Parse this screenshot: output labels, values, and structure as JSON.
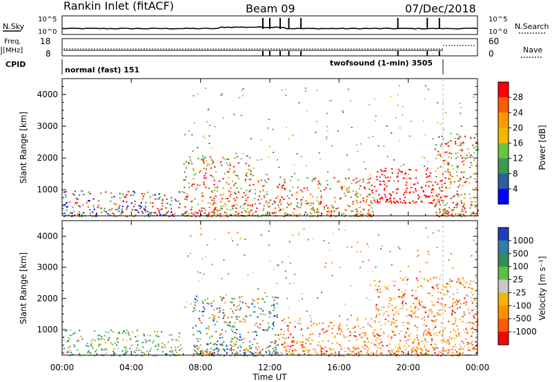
{
  "header": {
    "station": "Rankin Inlet (fitACF)",
    "beam": "Beam 09",
    "date": "07/Dec/2018"
  },
  "status_strip": {
    "nsky_label": "N.Sky",
    "nsky_ticks": [
      "10^5",
      "10^0"
    ],
    "nsearch_label": "N.Search",
    "freq_label_1": "Freq.",
    "freq_label_2": "[MHz]",
    "freq_ticks": [
      "18",
      "8"
    ],
    "nave_ticks": [
      "60",
      "0"
    ],
    "nave_label": "Nave",
    "cpid_label": "CPID",
    "cpid_normal": "normal (fast) 151",
    "cpid_twofsound": "twofsound (1-min) 3505"
  },
  "power_panel": {
    "ylabel": "Slant Range [km]",
    "cbar_label": "Power [dB]",
    "cbar_ticks": [
      "28",
      "24",
      "20",
      "16",
      "12",
      "8",
      "4"
    ],
    "cbar_colors": [
      "#ff0000",
      "#ff5a00",
      "#ff9a00",
      "#f5b800",
      "#6cc43e",
      "#3a9b50",
      "#2a5fa0",
      "#0000ff"
    ]
  },
  "velocity_panel": {
    "ylabel": "Slant Range [km]",
    "cbar_label": "Velocity  [m s⁻¹]",
    "cbar_ticks": [
      "1000",
      "500",
      "100",
      "25",
      "-25",
      "-100",
      "-500",
      "-1000"
    ],
    "cbar_colors": [
      "#1f3fbf",
      "#2f7fa8",
      "#2f8f58",
      "#5fbf3f",
      "#c8c8c8",
      "#f2b600",
      "#ff9100",
      "#ff5a00",
      "#ff0000"
    ]
  },
  "x_axis": {
    "label": "Time UT",
    "ticks": [
      "00:00",
      "04:00",
      "08:00",
      "12:00",
      "16:00",
      "20:00",
      "00:00"
    ]
  },
  "y_axis": {
    "ticks": [
      "1000",
      "2000",
      "3000",
      "4000"
    ]
  },
  "chart_data": [
    {
      "type": "heatmap",
      "title": "Power [dB]",
      "xlabel": "Time UT",
      "ylabel": "Slant Range [km]",
      "xlim": [
        0,
        24
      ],
      "ylim": [
        180,
        4500
      ],
      "colorbar": [
        4,
        8,
        12,
        16,
        20,
        24,
        28
      ],
      "regions": [
        {
          "t0": 0.0,
          "t1": 7.0,
          "r0": 180,
          "r1": 1000,
          "level": "mixed low-high"
        },
        {
          "t0": 7.0,
          "t1": 11.0,
          "r0": 180,
          "r1": 2100,
          "level": "20-28"
        },
        {
          "t0": 11.0,
          "t1": 18.0,
          "r0": 180,
          "r1": 1400,
          "level": "16-28"
        },
        {
          "t0": 18.0,
          "t1": 21.5,
          "r0": 600,
          "r1": 1700,
          "level": "28"
        },
        {
          "t0": 21.5,
          "t1": 24.0,
          "r0": 180,
          "r1": 2800,
          "level": "16-28"
        }
      ]
    },
    {
      "type": "heatmap",
      "title": "Velocity [m s⁻¹]",
      "xlabel": "Time UT",
      "ylabel": "Slant Range [km]",
      "xlim": [
        0,
        24
      ],
      "ylim": [
        180,
        4500
      ],
      "colorbar": [
        -1000,
        -500,
        -100,
        -25,
        25,
        100,
        500,
        1000
      ],
      "regions": [
        {
          "t0": 0.0,
          "t1": 7.0,
          "r0": 180,
          "r1": 1000,
          "level": "25-500"
        },
        {
          "t0": 7.5,
          "t1": 12.5,
          "r0": 180,
          "r1": 2100,
          "level": "-500 to 500"
        },
        {
          "t0": 12.5,
          "t1": 18.0,
          "r0": 180,
          "r1": 1400,
          "level": "-100 to -500"
        },
        {
          "t0": 18.0,
          "t1": 24.0,
          "r0": 180,
          "r1": 2700,
          "level": "-100 to -500"
        }
      ]
    }
  ]
}
